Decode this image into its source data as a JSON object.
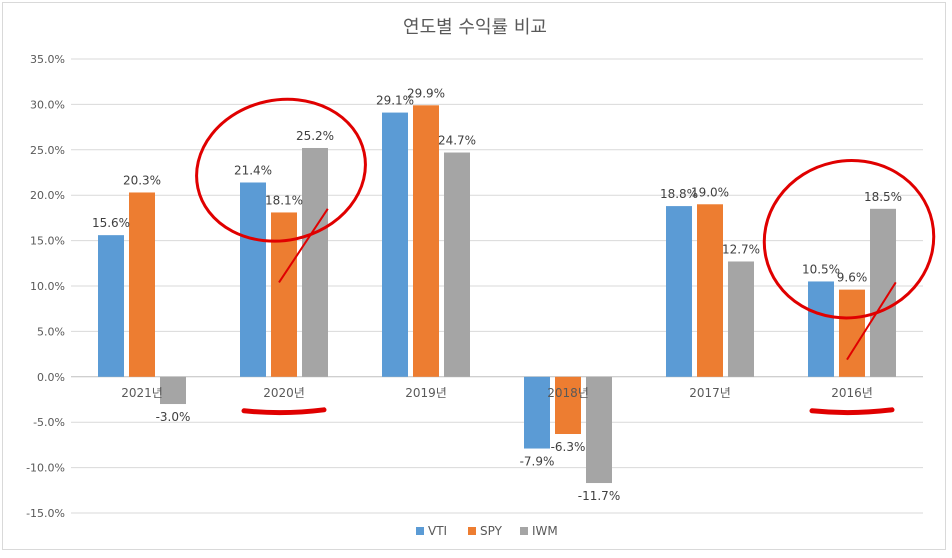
{
  "chart_data": {
    "type": "bar",
    "title": "연도별 수익률 비교",
    "categories": [
      "2021년",
      "2020년",
      "2019년",
      "2018년",
      "2017년",
      "2016년"
    ],
    "series": [
      {
        "name": "VTI",
        "color": "#5b9bd5",
        "values": [
          15.6,
          21.4,
          29.1,
          -7.9,
          18.8,
          10.5
        ],
        "labels": [
          "15.6%",
          "21.4%",
          "29.1%",
          "-7.9%",
          "18.8%",
          "10.5%"
        ]
      },
      {
        "name": "SPY",
        "color": "#ed7d31",
        "values": [
          20.3,
          18.1,
          29.9,
          -6.3,
          19.0,
          9.6
        ],
        "labels": [
          "20.3%",
          "18.1%",
          "29.9%",
          "-6.3%",
          "19.0%",
          "9.6%"
        ]
      },
      {
        "name": "IWM",
        "color": "#a5a5a5",
        "values": [
          -3.0,
          25.2,
          24.7,
          -11.7,
          12.7,
          18.5
        ],
        "labels": [
          "-3.0%",
          "25.2%",
          "24.7%",
          "-11.7%",
          "12.7%",
          "18.5%"
        ]
      }
    ],
    "ylim": [
      -15,
      35
    ],
    "yticks": [
      "-15.0%",
      "-10.0%",
      "-5.0%",
      "0.0%",
      "5.0%",
      "10.0%",
      "15.0%",
      "20.0%",
      "25.0%",
      "30.0%",
      "35.0%"
    ],
    "ytick_values": [
      -15,
      -10,
      -5,
      0,
      5,
      10,
      15,
      20,
      25,
      30,
      35
    ],
    "grid": true,
    "legend": "bottom",
    "annotations": {
      "color": "#e00000",
      "circled_categories": [
        "2020년",
        "2016년"
      ],
      "underlined_categories": [
        "2020년",
        "2016년"
      ]
    }
  }
}
